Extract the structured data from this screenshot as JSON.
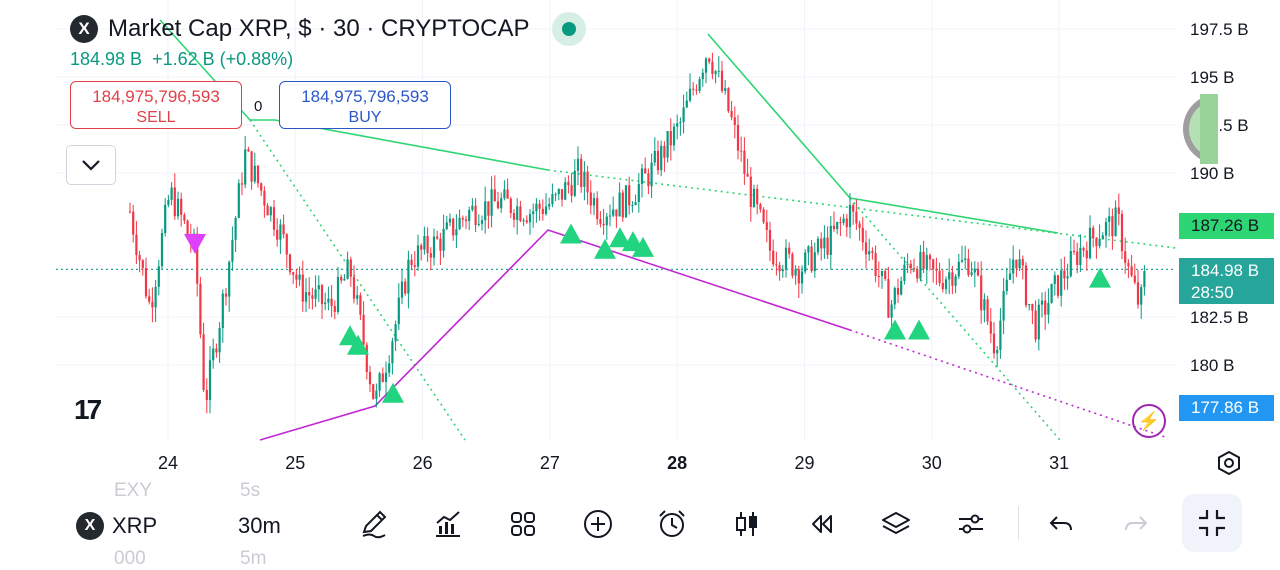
{
  "header": {
    "symbol_logo": "X",
    "title": "Market Cap XRP, $ · 30 · CRYPTOCAP",
    "price": "184.98 B",
    "change": "+1.62 B (+0.88%)"
  },
  "trade": {
    "sell_price": "184,975,796,593",
    "sell_label": "SELL",
    "buy_price": "184,975,796,593",
    "buy_label": "BUY",
    "spread": "0"
  },
  "watermark": "17",
  "y_axis_labels": [
    "197.5 B",
    "195 B",
    "192.5 B",
    "190 B",
    "182.5 B",
    "180 B"
  ],
  "x_axis_labels": [
    "24",
    "25",
    "26",
    "27",
    "28",
    "29",
    "30",
    "31"
  ],
  "price_tags": {
    "top": "187.26 B",
    "current": "184.98 B",
    "countdown": "28:50",
    "low": "177.86 B"
  },
  "colors": {
    "up": "#089981",
    "down": "#f23645",
    "trend_green": "#2ed573",
    "trend_purple": "#c026d3",
    "current_line": "#26a69a"
  },
  "icons": {
    "flash": "⚡",
    "settings": "settings-icon"
  },
  "bottom_bar": {
    "ghost_top": [
      "EXY",
      "5s"
    ],
    "ghost_bottom": [
      "000",
      "5m"
    ],
    "symbol": "XRP",
    "timeframe": "30m"
  },
  "chart_data": {
    "type": "candlestick",
    "x": [
      "24",
      "25",
      "26",
      "27",
      "28",
      "29",
      "30",
      "31"
    ],
    "current_price": 184.98,
    "high_marker": 187.26,
    "low_marker": 177.86,
    "ylim": [
      176.5,
      199
    ]
  }
}
